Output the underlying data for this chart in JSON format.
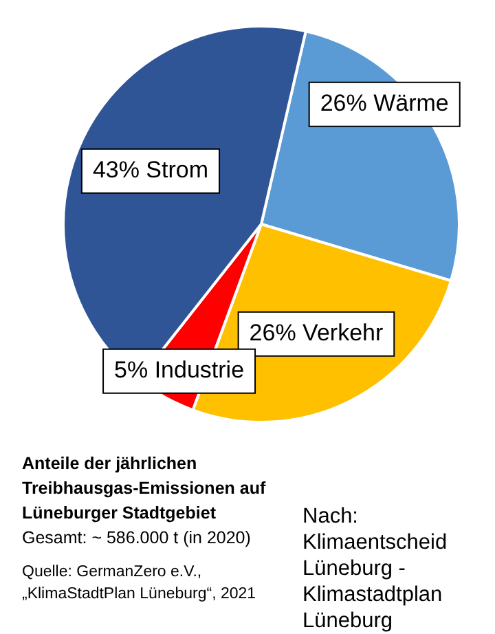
{
  "chart_data": {
    "type": "pie",
    "title": "Anteile der jährlichen Treibhausgas-Emissionen auf Lüneburger Stadtgebiet",
    "subtitle": "Gesamt: ~ 586.000 t (in 2020)",
    "categories": [
      "Wärme",
      "Verkehr",
      "Industrie",
      "Strom"
    ],
    "values": [
      26,
      26,
      5,
      43
    ],
    "colors": [
      "#5b9bd5",
      "#ffc000",
      "#ff0000",
      "#2f5597"
    ],
    "value_labels": [
      "26%",
      "26%",
      "5%",
      "43%"
    ],
    "legend": false,
    "annotations": [
      "Quelle: GermanZero e.V., „KlimaStadtPlan Lüneburg“, 2021",
      "Nach: Klimaentscheid Lüneburg - Klimastadtplan Lüneburg"
    ]
  }
}
